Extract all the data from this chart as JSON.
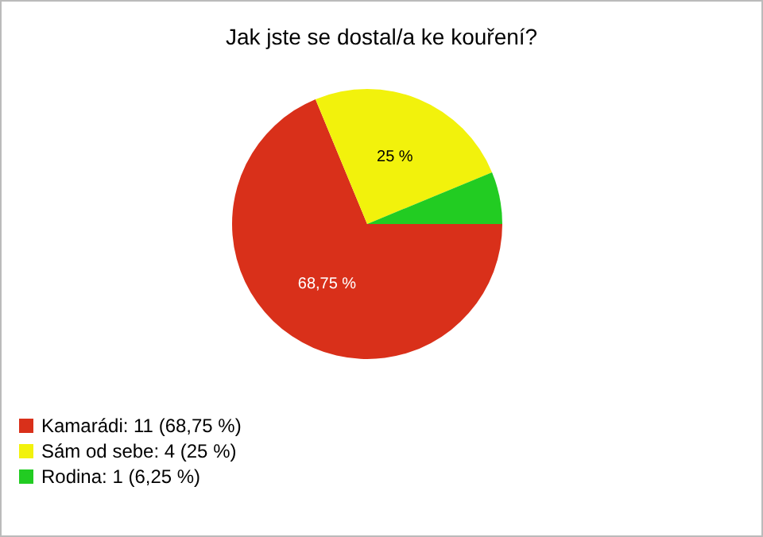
{
  "chart_data": {
    "type": "pie",
    "title": "Jak jste se dostal/a ke kouření?",
    "categories": [
      "Kamarádi: 11 (68,75 %)",
      "Sám od sebe: 4 (25 %)",
      "Rodina: 1 (6,25 %)"
    ],
    "values": [
      68.75,
      25,
      6.25
    ],
    "colors": [
      "#d9301a",
      "#f2f20c",
      "#22cc22"
    ],
    "value_labels": [
      "68,75 %",
      "25 %",
      null
    ],
    "legend": "bottom left"
  }
}
